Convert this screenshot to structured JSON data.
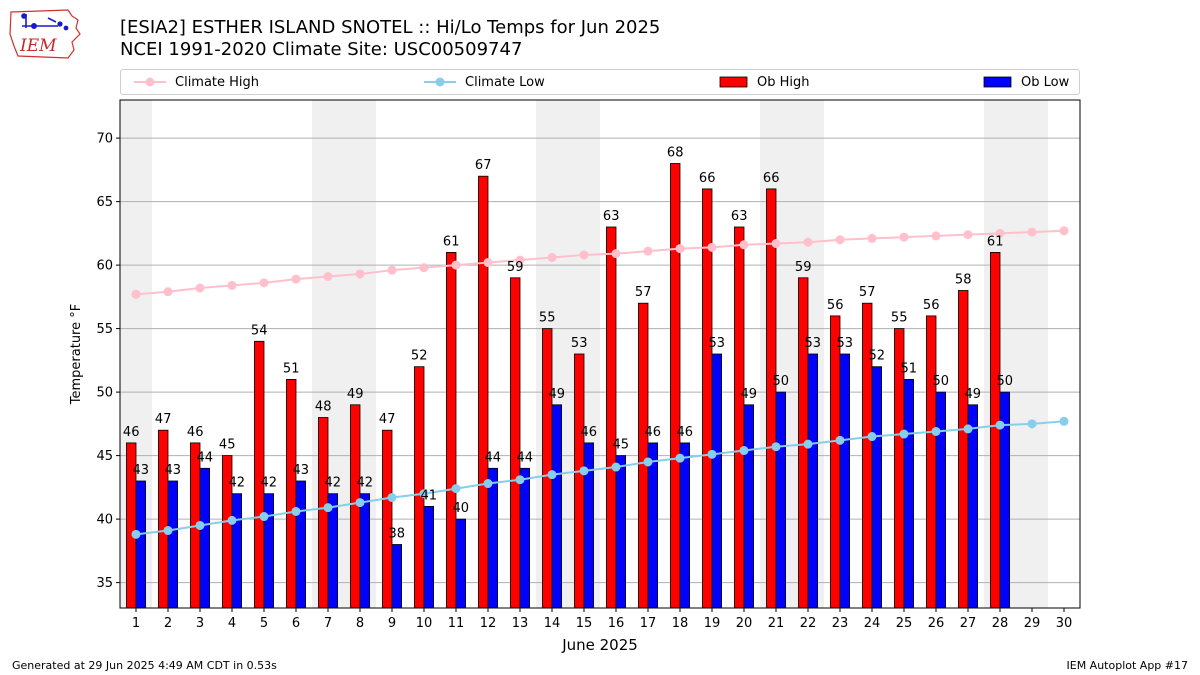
{
  "header": {
    "title_line1": "[ESIA2] ESTHER ISLAND SNOTEL :: Hi/Lo Temps for Jun 2025",
    "title_line2": "NCEI 1991-2020 Climate Site: USC00509747"
  },
  "logo": {
    "text": "IEM"
  },
  "legend": {
    "placement": "top, horizontal",
    "items": [
      {
        "label": "Climate High",
        "color": "#ffc0cb",
        "kind": "line-marker"
      },
      {
        "label": "Climate Low",
        "color": "#87ceeb",
        "kind": "line-marker"
      },
      {
        "label": "Ob High",
        "color": "#ff0000",
        "kind": "bar"
      },
      {
        "label": "Ob Low",
        "color": "#0000ff",
        "kind": "bar"
      }
    ]
  },
  "footer": {
    "left": "Generated at 29 Jun 2025 4:49 AM CDT in 0.53s",
    "right": "IEM Autoplot App #17"
  },
  "chart_data": {
    "type": "bar",
    "xlabel": "June 2025",
    "ylabel": "Temperature °F",
    "xlim": [
      0.5,
      30.5
    ],
    "ylim": [
      33,
      73
    ],
    "yticks": [
      35,
      40,
      45,
      50,
      55,
      60,
      65,
      70
    ],
    "grid": "horizontal",
    "weekend_shading": {
      "color": "#f0f0f0",
      "days": [
        1,
        7,
        8,
        14,
        15,
        21,
        22,
        28,
        29
      ]
    },
    "days": [
      1,
      2,
      3,
      4,
      5,
      6,
      7,
      8,
      9,
      10,
      11,
      12,
      13,
      14,
      15,
      16,
      17,
      18,
      19,
      20,
      21,
      22,
      23,
      24,
      25,
      26,
      27,
      28,
      29,
      30
    ],
    "series": [
      {
        "name": "Ob High",
        "type": "bar",
        "color": "#ff0000",
        "values": [
          46,
          47,
          46,
          45,
          54,
          51,
          48,
          49,
          47,
          52,
          61,
          67,
          59,
          55,
          53,
          63,
          57,
          68,
          66,
          63,
          66,
          59,
          56,
          57,
          55,
          56,
          58,
          61,
          null,
          null
        ]
      },
      {
        "name": "Ob Low",
        "type": "bar",
        "color": "#0000ff",
        "values": [
          43,
          43,
          44,
          42,
          42,
          43,
          42,
          42,
          38,
          41,
          40,
          44,
          44,
          49,
          46,
          45,
          46,
          46,
          53,
          49,
          50,
          53,
          53,
          52,
          51,
          50,
          49,
          50,
          null,
          null
        ]
      },
      {
        "name": "Climate High",
        "type": "line",
        "color": "#ffc0cb",
        "values": [
          57.7,
          57.9,
          58.2,
          58.4,
          58.6,
          58.9,
          59.1,
          59.3,
          59.6,
          59.8,
          60.0,
          60.2,
          60.4,
          60.6,
          60.8,
          60.9,
          61.1,
          61.3,
          61.4,
          61.6,
          61.7,
          61.8,
          62.0,
          62.1,
          62.2,
          62.3,
          62.4,
          62.5,
          62.6,
          62.7
        ]
      },
      {
        "name": "Climate Low",
        "type": "line",
        "color": "#87ceeb",
        "values": [
          38.8,
          39.1,
          39.5,
          39.9,
          40.2,
          40.6,
          40.9,
          41.3,
          41.7,
          42.0,
          42.4,
          42.8,
          43.1,
          43.5,
          43.8,
          44.1,
          44.5,
          44.8,
          45.1,
          45.4,
          45.7,
          45.9,
          46.2,
          46.5,
          46.7,
          46.9,
          47.1,
          47.4,
          47.5,
          47.7
        ]
      }
    ]
  }
}
